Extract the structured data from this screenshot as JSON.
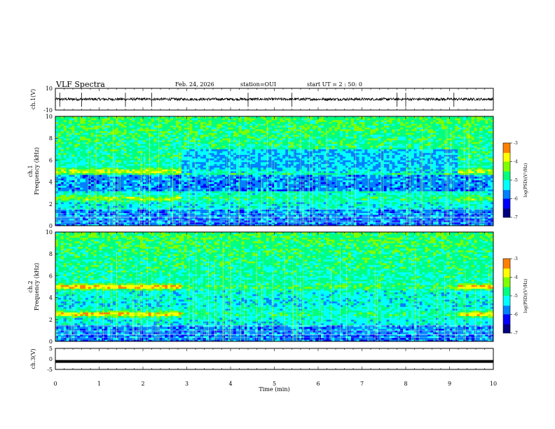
{
  "header": {
    "title": "VLF Spectra",
    "date": "Feb. 24, 2026",
    "station": "station=OUI",
    "start": "start UT =  2 : 50: 0"
  },
  "chart_data": [
    {
      "type": "line",
      "panel": "ch1-waveform",
      "ylabel": "ch.1(V)",
      "ylim": [
        -10,
        10
      ],
      "yticks": [
        10,
        -10
      ],
      "xlim": [
        0,
        10
      ],
      "series": [
        {
          "values_description_baseline": 0,
          "noise_amplitude": 1.2,
          "spikes": [
            0.1,
            0.6,
            1.6,
            2.2,
            4.4,
            5.4,
            7.8,
            8.0,
            9.1
          ]
        }
      ],
      "color": "#000000"
    },
    {
      "type": "heatmap",
      "panel": "ch1-spectrogram",
      "ylabel_top": "ch.1",
      "ylabel": "Frequency (kHz)",
      "ylim": [
        0,
        10
      ],
      "yticks": [
        0,
        2,
        4,
        6,
        8,
        10
      ],
      "xlim": [
        0,
        10
      ],
      "segment_breaks": [
        2.85,
        9.2
      ],
      "bands_kHz": [
        2.5,
        5.0
      ],
      "colorbar": {
        "label": "log(PSD)(V²/Hz)",
        "range": [
          -7,
          -3
        ],
        "ticks": [
          -3,
          -4,
          -5,
          -6,
          -7
        ]
      }
    },
    {
      "type": "heatmap",
      "panel": "ch2-spectrogram",
      "ylabel_top": "ch.2",
      "ylabel": "Frequency (kHz)",
      "ylim": [
        0,
        10
      ],
      "yticks": [
        0,
        2,
        4,
        6,
        8,
        10
      ],
      "xlim": [
        0,
        10
      ],
      "segment_breaks": [
        2.85,
        9.2
      ],
      "bands_kHz": [
        2.5,
        5.0
      ],
      "colorbar": {
        "label": "log(PSD)(V²/Hz)",
        "range": [
          -7,
          -3
        ],
        "ticks": [
          -3,
          -4,
          -5,
          -6,
          -7
        ]
      }
    },
    {
      "type": "line",
      "panel": "ch3-waveform",
      "ylabel": "ch.3(V)",
      "ylim": [
        -5,
        5
      ],
      "yticks": [
        5,
        0,
        -5
      ],
      "xlim": [
        0,
        10
      ],
      "xticks": [
        0,
        1,
        2,
        3,
        4,
        5,
        6,
        7,
        8,
        9,
        10
      ],
      "xlabel": "Time (min)",
      "series": [
        {
          "constant": -1.2
        }
      ],
      "color": "#000000"
    }
  ],
  "colors": {
    "axis": "#000000",
    "colormap": [
      "#000080",
      "#0000ff",
      "#0080ff",
      "#00ffff",
      "#00ff80",
      "#80ff00",
      "#ffff00",
      "#ff8000",
      "#ff0000",
      "#ffffff"
    ]
  }
}
